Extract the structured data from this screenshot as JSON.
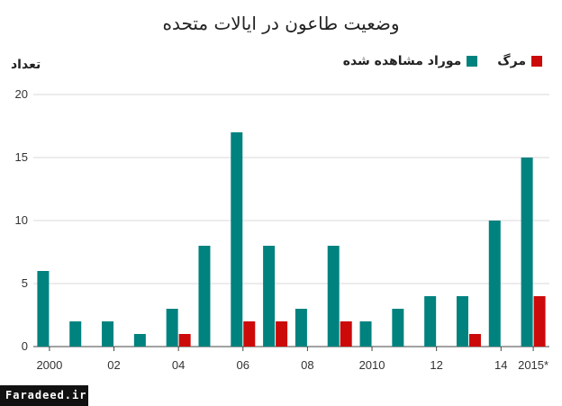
{
  "chart_data": {
    "type": "bar",
    "title": "وضعیت طاعون در ایالات متحده",
    "ylabel": "تعداد",
    "ylim": [
      0,
      20
    ],
    "yticks": [
      0,
      5,
      10,
      15,
      20
    ],
    "categories": [
      "2000",
      "2001",
      "2002",
      "2003",
      "2004",
      "2005",
      "2006",
      "2007",
      "2008",
      "2009",
      "2010",
      "2011",
      "2012",
      "2013",
      "2014",
      "2015"
    ],
    "xtick_labels": [
      {
        "category": "2000",
        "label": "2000"
      },
      {
        "category": "2002",
        "label": "02"
      },
      {
        "category": "2004",
        "label": "04"
      },
      {
        "category": "2006",
        "label": "06"
      },
      {
        "category": "2008",
        "label": "08"
      },
      {
        "category": "2010",
        "label": "2010"
      },
      {
        "category": "2012",
        "label": "12"
      },
      {
        "category": "2014",
        "label": "14"
      },
      {
        "category": "2015",
        "label": "2015*"
      }
    ],
    "series": [
      {
        "name": "موراد مشاهده شده",
        "color": "#00827f",
        "values": [
          6,
          2,
          2,
          1,
          3,
          8,
          17,
          8,
          3,
          8,
          2,
          3,
          4,
          4,
          10,
          15
        ]
      },
      {
        "name": "مرگ",
        "color": "#cc0a0a",
        "values": [
          0,
          0,
          0,
          0,
          1,
          0,
          2,
          2,
          0,
          2,
          0,
          0,
          0,
          1,
          0,
          4
        ]
      }
    ],
    "legend": "top-right",
    "grid": true
  },
  "watermark": "Faradeed.ir"
}
